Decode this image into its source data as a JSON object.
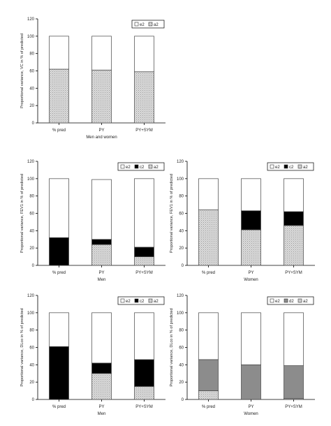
{
  "chart_data": [
    {
      "type": "bar",
      "stacked": true,
      "categories": [
        "% pred",
        "PY",
        "PY+SYM"
      ],
      "xlabel": "Men and women",
      "ylabel": "Proportional variance, VC in % of predicted",
      "ylim": [
        0,
        120
      ],
      "yticks": [
        0,
        20,
        40,
        60,
        80,
        100,
        120
      ],
      "legend": "top-right",
      "legend_entries": [
        "e2",
        "a2"
      ],
      "series": [
        {
          "name": "a2",
          "values": [
            62,
            61,
            59
          ],
          "fill": "stipple"
        },
        {
          "name": "e2",
          "values": [
            38,
            39,
            41
          ],
          "fill": "white"
        }
      ]
    },
    {
      "type": "bar",
      "stacked": true,
      "categories": [
        "% pred",
        "PY",
        "PY+SYM"
      ],
      "xlabel": "Men",
      "ylabel": "Proportional variance, FEV1 in % of predicted",
      "ylim": [
        0,
        120
      ],
      "yticks": [
        0,
        20,
        40,
        60,
        80,
        100,
        120
      ],
      "legend": "top-right",
      "legend_entries": [
        "e2",
        "c2",
        "a2"
      ],
      "series": [
        {
          "name": "a2",
          "values": [
            0,
            24,
            10
          ],
          "fill": "stipple"
        },
        {
          "name": "c2",
          "values": [
            32,
            6,
            11
          ],
          "fill": "black"
        },
        {
          "name": "e2",
          "values": [
            68,
            69,
            79
          ],
          "fill": "white"
        }
      ]
    },
    {
      "type": "bar",
      "stacked": true,
      "categories": [
        "% pred",
        "PY",
        "PY+SYM"
      ],
      "xlabel": "Women",
      "ylabel": "Proportional variance, FEV1 in % of predicted",
      "ylim": [
        0,
        120
      ],
      "yticks": [
        0,
        20,
        40,
        60,
        80,
        100,
        120
      ],
      "legend": "top-right",
      "legend_entries": [
        "e2",
        "c2",
        "a2"
      ],
      "series": [
        {
          "name": "a2",
          "values": [
            64,
            41,
            46
          ],
          "fill": "stipple"
        },
        {
          "name": "c2",
          "values": [
            0,
            22,
            16
          ],
          "fill": "black"
        },
        {
          "name": "e2",
          "values": [
            36,
            37,
            38
          ],
          "fill": "white"
        }
      ]
    },
    {
      "type": "bar",
      "stacked": true,
      "categories": [
        "% pred",
        "PY",
        "PY+SYM"
      ],
      "xlabel": "Men",
      "ylabel": "Proportional variance, DLco in % of predicted",
      "ylim": [
        0,
        120
      ],
      "yticks": [
        0,
        20,
        40,
        60,
        80,
        100,
        120
      ],
      "legend": "top-right",
      "legend_entries": [
        "e2",
        "c2",
        "a2"
      ],
      "series": [
        {
          "name": "a2",
          "values": [
            0,
            30,
            15
          ],
          "fill": "stipple"
        },
        {
          "name": "c2",
          "values": [
            61,
            12,
            31
          ],
          "fill": "black"
        },
        {
          "name": "e2",
          "values": [
            39,
            58,
            54
          ],
          "fill": "white"
        }
      ]
    },
    {
      "type": "bar",
      "stacked": true,
      "categories": [
        "% pred",
        "PY",
        "PY+SYM"
      ],
      "xlabel": "Women",
      "ylabel": "Proportional variance, DLco in % of predicted",
      "ylim": [
        0,
        120
      ],
      "yticks": [
        0,
        20,
        40,
        60,
        80,
        100,
        120
      ],
      "legend": "top-right",
      "legend_entries": [
        "e2",
        "d2",
        "a2"
      ],
      "series": [
        {
          "name": "a2",
          "values": [
            10,
            0,
            1
          ],
          "fill": "stipple"
        },
        {
          "name": "d2",
          "values": [
            36,
            40,
            38
          ],
          "fill": "gray"
        },
        {
          "name": "e2",
          "values": [
            54,
            60,
            61
          ],
          "fill": "white"
        }
      ]
    }
  ]
}
